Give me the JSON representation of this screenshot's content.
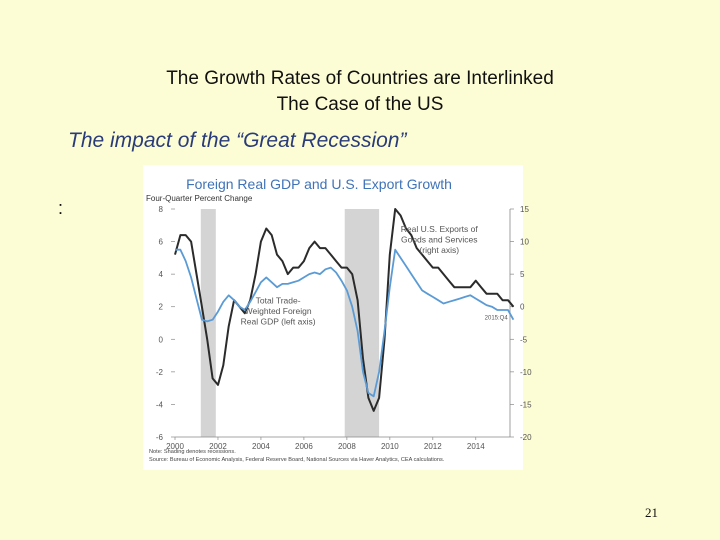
{
  "slide": {
    "title_line1": "The Growth Rates of Countries are Interlinked",
    "title_line2": "The Case of the US",
    "subtitle": "The impact of the “Great Recession”",
    "bullet_marker": ":",
    "page_number": "21"
  },
  "colors": {
    "background": "#fdfdd5",
    "chart_title": "#3f73b8",
    "series_dark": "#2b2b2b",
    "series_blue": "#5b9bd5",
    "recession_shade": "#d4d4d4"
  },
  "chart_data": {
    "type": "line",
    "title": "Foreign Real GDP and U.S. Export Growth",
    "left_axis_label": "Four-Quarter Percent Change",
    "left_ylim": [
      -6,
      8
    ],
    "left_ticks": [
      "8",
      "6",
      "4",
      "2",
      "0",
      "-2",
      "-4",
      "-6"
    ],
    "right_ylim": [
      -20,
      15
    ],
    "right_ticks": [
      "15",
      "10",
      "5",
      "0",
      "-5",
      "-10",
      "-15",
      "-20"
    ],
    "xlim": [
      2000,
      2015.5
    ],
    "x_ticks": [
      "2000",
      "2002",
      "2004",
      "2006",
      "2008",
      "2010",
      "2012",
      "2014"
    ],
    "recessions": [
      [
        2001.2,
        2001.9
      ],
      [
        2007.9,
        2009.5
      ]
    ],
    "annotations": [
      {
        "text": [
          "Real U.S. Exports of",
          "Goods and Services",
          "(right axis)"
        ],
        "x": 2012.3,
        "y_left": 6.6
      },
      {
        "text": [
          "Total Trade-",
          "Weighted Foreign",
          "Real GDP (left axis)"
        ],
        "x": 2004.8,
        "y_left": 2.2
      },
      {
        "text": [
          "2015:Q4"
        ],
        "x": 2014.95,
        "y_left": 1.2
      }
    ],
    "notes": [
      "Note: Shading denotes recessions.",
      "Source: Bureau of Economic Analysis, Federal Reserve Board, National Sources via Haver Analytics, CEA calculations."
    ],
    "series": [
      {
        "name": "Real U.S. Exports of Goods and Services (right axis)",
        "axis": "right",
        "x": [
          2000.0,
          2000.25,
          2000.5,
          2000.75,
          2001.0,
          2001.25,
          2001.5,
          2001.75,
          2002.0,
          2002.25,
          2002.5,
          2002.75,
          2003.0,
          2003.25,
          2003.5,
          2003.75,
          2004.0,
          2004.25,
          2004.5,
          2004.75,
          2005.0,
          2005.25,
          2005.5,
          2005.75,
          2006.0,
          2006.25,
          2006.5,
          2006.75,
          2007.0,
          2007.25,
          2007.5,
          2007.75,
          2008.0,
          2008.25,
          2008.5,
          2008.75,
          2009.0,
          2009.25,
          2009.5,
          2009.75,
          2010.0,
          2010.25,
          2010.5,
          2010.75,
          2011.0,
          2011.25,
          2011.5,
          2011.75,
          2012.0,
          2012.25,
          2012.5,
          2012.75,
          2013.0,
          2013.25,
          2013.5,
          2013.75,
          2014.0,
          2014.25,
          2014.5,
          2014.75,
          2015.0,
          2015.25,
          2015.5,
          2015.75
        ],
        "values": [
          8,
          11,
          11,
          10,
          5,
          0,
          -5,
          -11,
          -12,
          -9,
          -3,
          1,
          0,
          -1,
          1,
          5,
          10,
          12,
          11,
          8,
          7,
          5,
          6,
          6,
          7,
          9,
          10,
          9,
          9,
          8,
          7,
          6,
          6,
          5,
          1,
          -8,
          -14,
          -16,
          -14,
          -5,
          8,
          15,
          14,
          12,
          11,
          9,
          8,
          7,
          6,
          6,
          5,
          4,
          3,
          3,
          3,
          3,
          4,
          3,
          2,
          2,
          2,
          1,
          1,
          0
        ],
        "color": "#2b2b2b"
      },
      {
        "name": "Total Trade-Weighted Foreign Real GDP (left axis)",
        "axis": "left",
        "x": [
          2000.0,
          2000.25,
          2000.5,
          2000.75,
          2001.0,
          2001.25,
          2001.5,
          2001.75,
          2002.0,
          2002.25,
          2002.5,
          2002.75,
          2003.0,
          2003.25,
          2003.5,
          2003.75,
          2004.0,
          2004.25,
          2004.5,
          2004.75,
          2005.0,
          2005.25,
          2005.5,
          2005.75,
          2006.0,
          2006.25,
          2006.5,
          2006.75,
          2007.0,
          2007.25,
          2007.5,
          2007.75,
          2008.0,
          2008.25,
          2008.5,
          2008.75,
          2009.0,
          2009.25,
          2009.5,
          2009.75,
          2010.0,
          2010.25,
          2010.5,
          2010.75,
          2011.0,
          2011.25,
          2011.5,
          2011.75,
          2012.0,
          2012.25,
          2012.5,
          2012.75,
          2013.0,
          2013.25,
          2013.5,
          2013.75,
          2014.0,
          2014.25,
          2014.5,
          2014.75,
          2015.0,
          2015.25,
          2015.5,
          2015.75
        ],
        "values": [
          5.5,
          5.5,
          4.8,
          3.8,
          2.5,
          1.2,
          1.1,
          1.2,
          1.7,
          2.3,
          2.7,
          2.4,
          2.0,
          1.8,
          2.3,
          2.9,
          3.5,
          3.8,
          3.5,
          3.2,
          3.4,
          3.4,
          3.5,
          3.6,
          3.8,
          4.0,
          4.1,
          4.0,
          4.3,
          4.4,
          4.1,
          3.6,
          3.0,
          2.0,
          0.5,
          -2.0,
          -3.3,
          -3.5,
          -2.0,
          0.5,
          3.2,
          5.5,
          5.0,
          4.5,
          4.0,
          3.5,
          3.0,
          2.8,
          2.6,
          2.4,
          2.2,
          2.3,
          2.4,
          2.5,
          2.6,
          2.7,
          2.5,
          2.3,
          2.1,
          2.0,
          1.8,
          1.8,
          1.8,
          1.2
        ],
        "color": "#5b9bd5"
      }
    ]
  }
}
